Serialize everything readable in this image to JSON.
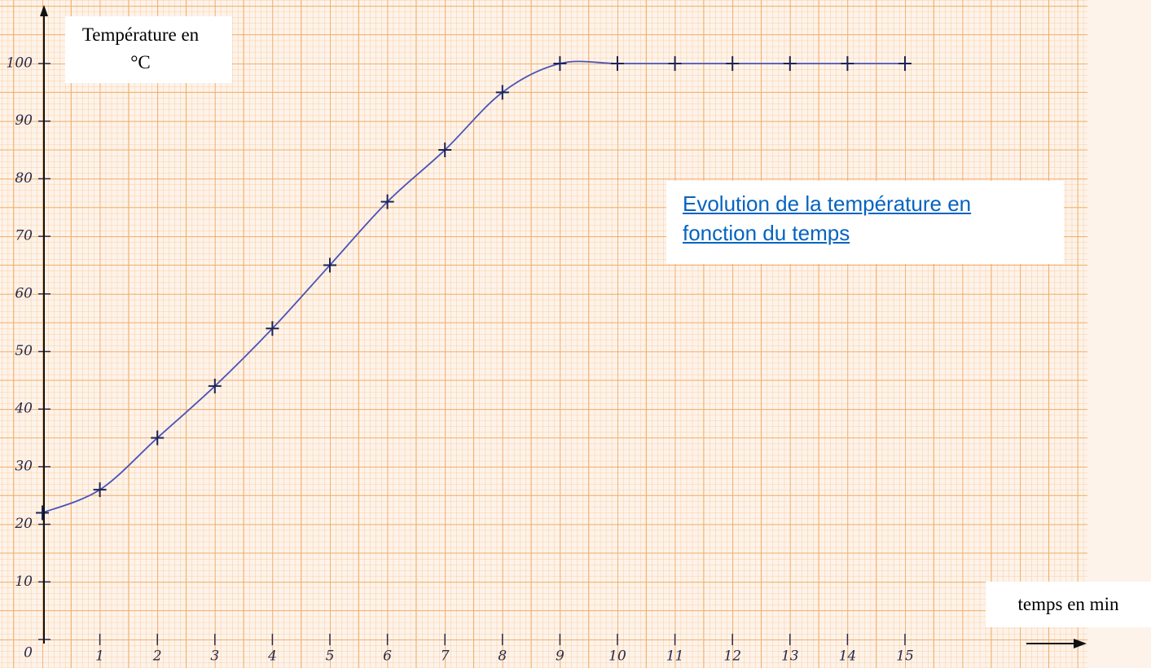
{
  "chart_data": {
    "type": "line",
    "title": "Evolution de la température en fonction du temps",
    "x_label": "temps en min",
    "y_label": "Température en °C",
    "x": [
      0,
      1,
      2,
      3,
      4,
      5,
      6,
      7,
      8,
      9,
      10,
      11,
      12,
      13,
      14,
      15
    ],
    "series": [
      {
        "color": "#4a54b8",
        "values": [
          22,
          26,
          35,
          44,
          54,
          65,
          76,
          85,
          95,
          100,
          100,
          100,
          100,
          100,
          100,
          100
        ]
      }
    ],
    "xlim": [
      0,
      18
    ],
    "ylim": [
      0,
      110
    ],
    "xticks": [
      1,
      2,
      3,
      4,
      5,
      6,
      7,
      8,
      9,
      10,
      11,
      12,
      13,
      14,
      15
    ],
    "yticks": [
      0,
      10,
      20,
      30,
      40,
      50,
      60,
      70,
      80,
      90,
      100
    ],
    "grid": true
  }
}
